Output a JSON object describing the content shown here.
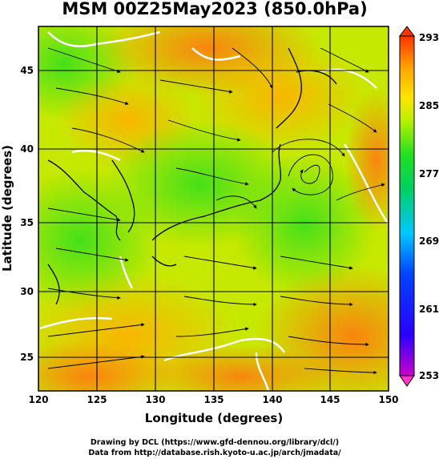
{
  "title": "MSM 00Z25May2023 (850.0hPa)",
  "xlabel": "Longitude (degrees)",
  "ylabel": "Latitude  (degrees)",
  "x_ticks": [
    "120",
    "125",
    "130",
    "135",
    "140",
    "145",
    "150"
  ],
  "y_ticks": [
    "25",
    "30",
    "35",
    "40",
    "45"
  ],
  "colorbar_ticks": [
    "293",
    "285",
    "277",
    "269",
    "261",
    "253"
  ],
  "credits": {
    "line1": "Drawing by DCL (https://www.gfd-dennou.org/library/dcl/)",
    "line2": "Data from http://database.rish.kyoto-u.ac.jp/arch/jmadata/"
  },
  "map": {
    "lon_range": [
      120,
      150
    ],
    "lat_range": [
      23,
      48
    ],
    "colorbar_range": [
      253,
      293
    ],
    "colors": {
      "warm": "#ff6a1a",
      "mid": "#e6e600",
      "cool": "#22d622",
      "cold": "#1a1aff",
      "coldest": "#ff33cc"
    }
  }
}
